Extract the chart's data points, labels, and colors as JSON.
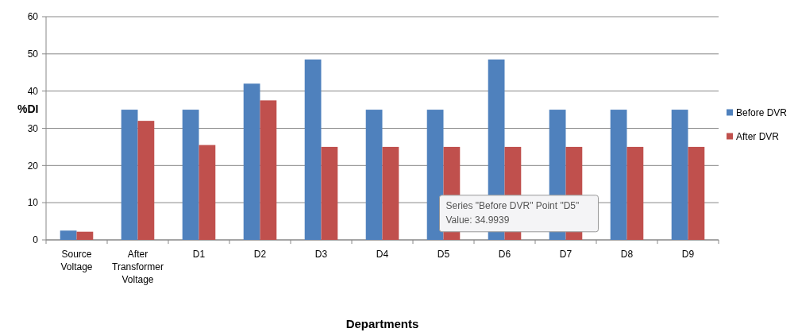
{
  "chart_data": {
    "type": "bar",
    "xlabel": "Departments",
    "ylabel": "%DI",
    "categories": [
      "Source Voltage",
      "After Transformer Voltage",
      "D1",
      "D2",
      "D3",
      "D4",
      "D5",
      "D6",
      "D7",
      "D8",
      "D9"
    ],
    "series": [
      {
        "name": "Before DVR",
        "color": "#4f81bd",
        "values": [
          2.5,
          35,
          35,
          42,
          48.5,
          35,
          35,
          48.5,
          35,
          35,
          35
        ]
      },
      {
        "name": "After DVR",
        "color": "#c0504d",
        "values": [
          2.2,
          32,
          25.5,
          37.5,
          25,
          25,
          25,
          25,
          25,
          25,
          25
        ]
      }
    ],
    "ylim": [
      0,
      60
    ],
    "yticks": [
      0,
      10,
      20,
      30,
      40,
      50,
      60
    ],
    "grid": "y",
    "legend": "right",
    "annotations": [
      "Series \"Before DVR\" Point \"D5\"\nValue: 34.9939"
    ]
  }
}
